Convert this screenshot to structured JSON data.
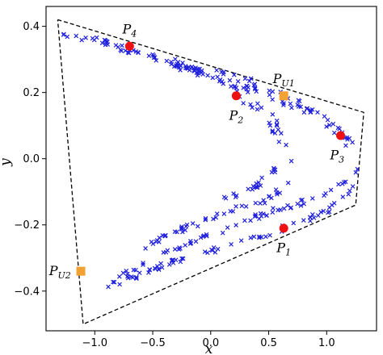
{
  "chart_data": {
    "type": "scatter",
    "xlabel": "x",
    "ylabel": "y",
    "xlim": [
      -1.42,
      1.43
    ],
    "ylim": [
      -0.52,
      0.46
    ],
    "xticks": [
      "−1.0",
      "−0.5",
      "0.0",
      "0.5",
      "1.0"
    ],
    "xtick_values": [
      -1.0,
      -0.5,
      0.0,
      0.5,
      1.0
    ],
    "yticks": [
      "−0.4",
      "−0.2",
      "0.0",
      "0.2",
      "0.4"
    ],
    "ytick_values": [
      -0.4,
      -0.2,
      0.0,
      0.2,
      0.4
    ],
    "grid": false,
    "colors": {
      "samples": "#1f1fdd",
      "labeled": "#ee1111",
      "unlabeled": "#f2a233",
      "boundary": "#000000"
    },
    "boundary_polygon": [
      [
        -1.32,
        0.42
      ],
      [
        1.32,
        0.14
      ],
      [
        1.25,
        -0.14
      ],
      [
        -1.1,
        -0.5
      ],
      [
        -1.32,
        0.42
      ]
    ],
    "sample_markers": "x",
    "branches": [
      {
        "points": [
          [
            -1.28,
            0.38
          ],
          [
            -0.9,
            0.35
          ],
          [
            -0.45,
            0.3
          ],
          [
            0.0,
            0.25
          ],
          [
            0.35,
            0.21
          ],
          [
            0.7,
            0.16
          ],
          [
            1.0,
            0.12
          ],
          [
            1.22,
            0.05
          ],
          [
            1.27,
            -0.02
          ],
          [
            1.22,
            -0.09
          ],
          [
            1.05,
            -0.15
          ],
          [
            0.7,
            -0.2
          ],
          [
            0.2,
            -0.26
          ],
          [
            -0.3,
            -0.31
          ],
          [
            -0.7,
            -0.36
          ],
          [
            -0.9,
            -0.39
          ]
        ],
        "count": 140
      },
      {
        "points": [
          [
            -1.0,
            0.36
          ],
          [
            -0.5,
            0.31
          ],
          [
            -0.1,
            0.27
          ],
          [
            0.3,
            0.24
          ],
          [
            0.6,
            0.2
          ],
          [
            0.9,
            0.14
          ],
          [
            1.15,
            0.06
          ],
          [
            1.2,
            -0.01
          ],
          [
            1.15,
            -0.07
          ],
          [
            0.9,
            -0.12
          ],
          [
            0.5,
            -0.16
          ],
          [
            0.0,
            -0.23
          ],
          [
            -0.45,
            -0.29
          ],
          [
            -0.85,
            -0.37
          ]
        ],
        "count": 110
      },
      {
        "points": [
          [
            -0.3,
            0.28
          ],
          [
            0.0,
            0.25
          ],
          [
            0.3,
            0.21
          ],
          [
            0.55,
            0.12
          ],
          [
            0.7,
            0.02
          ],
          [
            0.68,
            -0.07
          ],
          [
            0.5,
            -0.12
          ],
          [
            0.25,
            -0.15
          ],
          [
            0.0,
            -0.18
          ],
          [
            -0.3,
            -0.22
          ],
          [
            -0.6,
            -0.27
          ]
        ],
        "count": 80
      },
      {
        "points": [
          [
            0.2,
            0.2
          ],
          [
            0.45,
            0.13
          ],
          [
            0.6,
            0.04
          ],
          [
            0.55,
            -0.04
          ],
          [
            0.35,
            -0.09
          ],
          [
            0.1,
            -0.12
          ]
        ],
        "count": 35
      }
    ],
    "labeled_points": [
      {
        "name": "P",
        "sub": "1",
        "x": 0.63,
        "y": -0.21,
        "label_dx": 0,
        "label_dy": -0.06
      },
      {
        "name": "P",
        "sub": "2",
        "x": 0.22,
        "y": 0.19,
        "label_dx": 0.0,
        "label_dy": -0.06
      },
      {
        "name": "P",
        "sub": "3",
        "x": 1.12,
        "y": 0.07,
        "label_dx": -0.03,
        "label_dy": -0.06
      },
      {
        "name": "P",
        "sub": "4",
        "x": -0.7,
        "y": 0.34,
        "label_dx": 0.0,
        "label_dy": 0.05
      }
    ],
    "unlabeled_points": [
      {
        "name": "P",
        "sub": "U1",
        "x": 0.63,
        "y": 0.19,
        "label_dx": 0.0,
        "label_dy": 0.05
      },
      {
        "name": "P",
        "sub": "U2",
        "x": -1.12,
        "y": -0.34,
        "label_dx": -0.18,
        "label_dy": 0.0
      }
    ]
  }
}
